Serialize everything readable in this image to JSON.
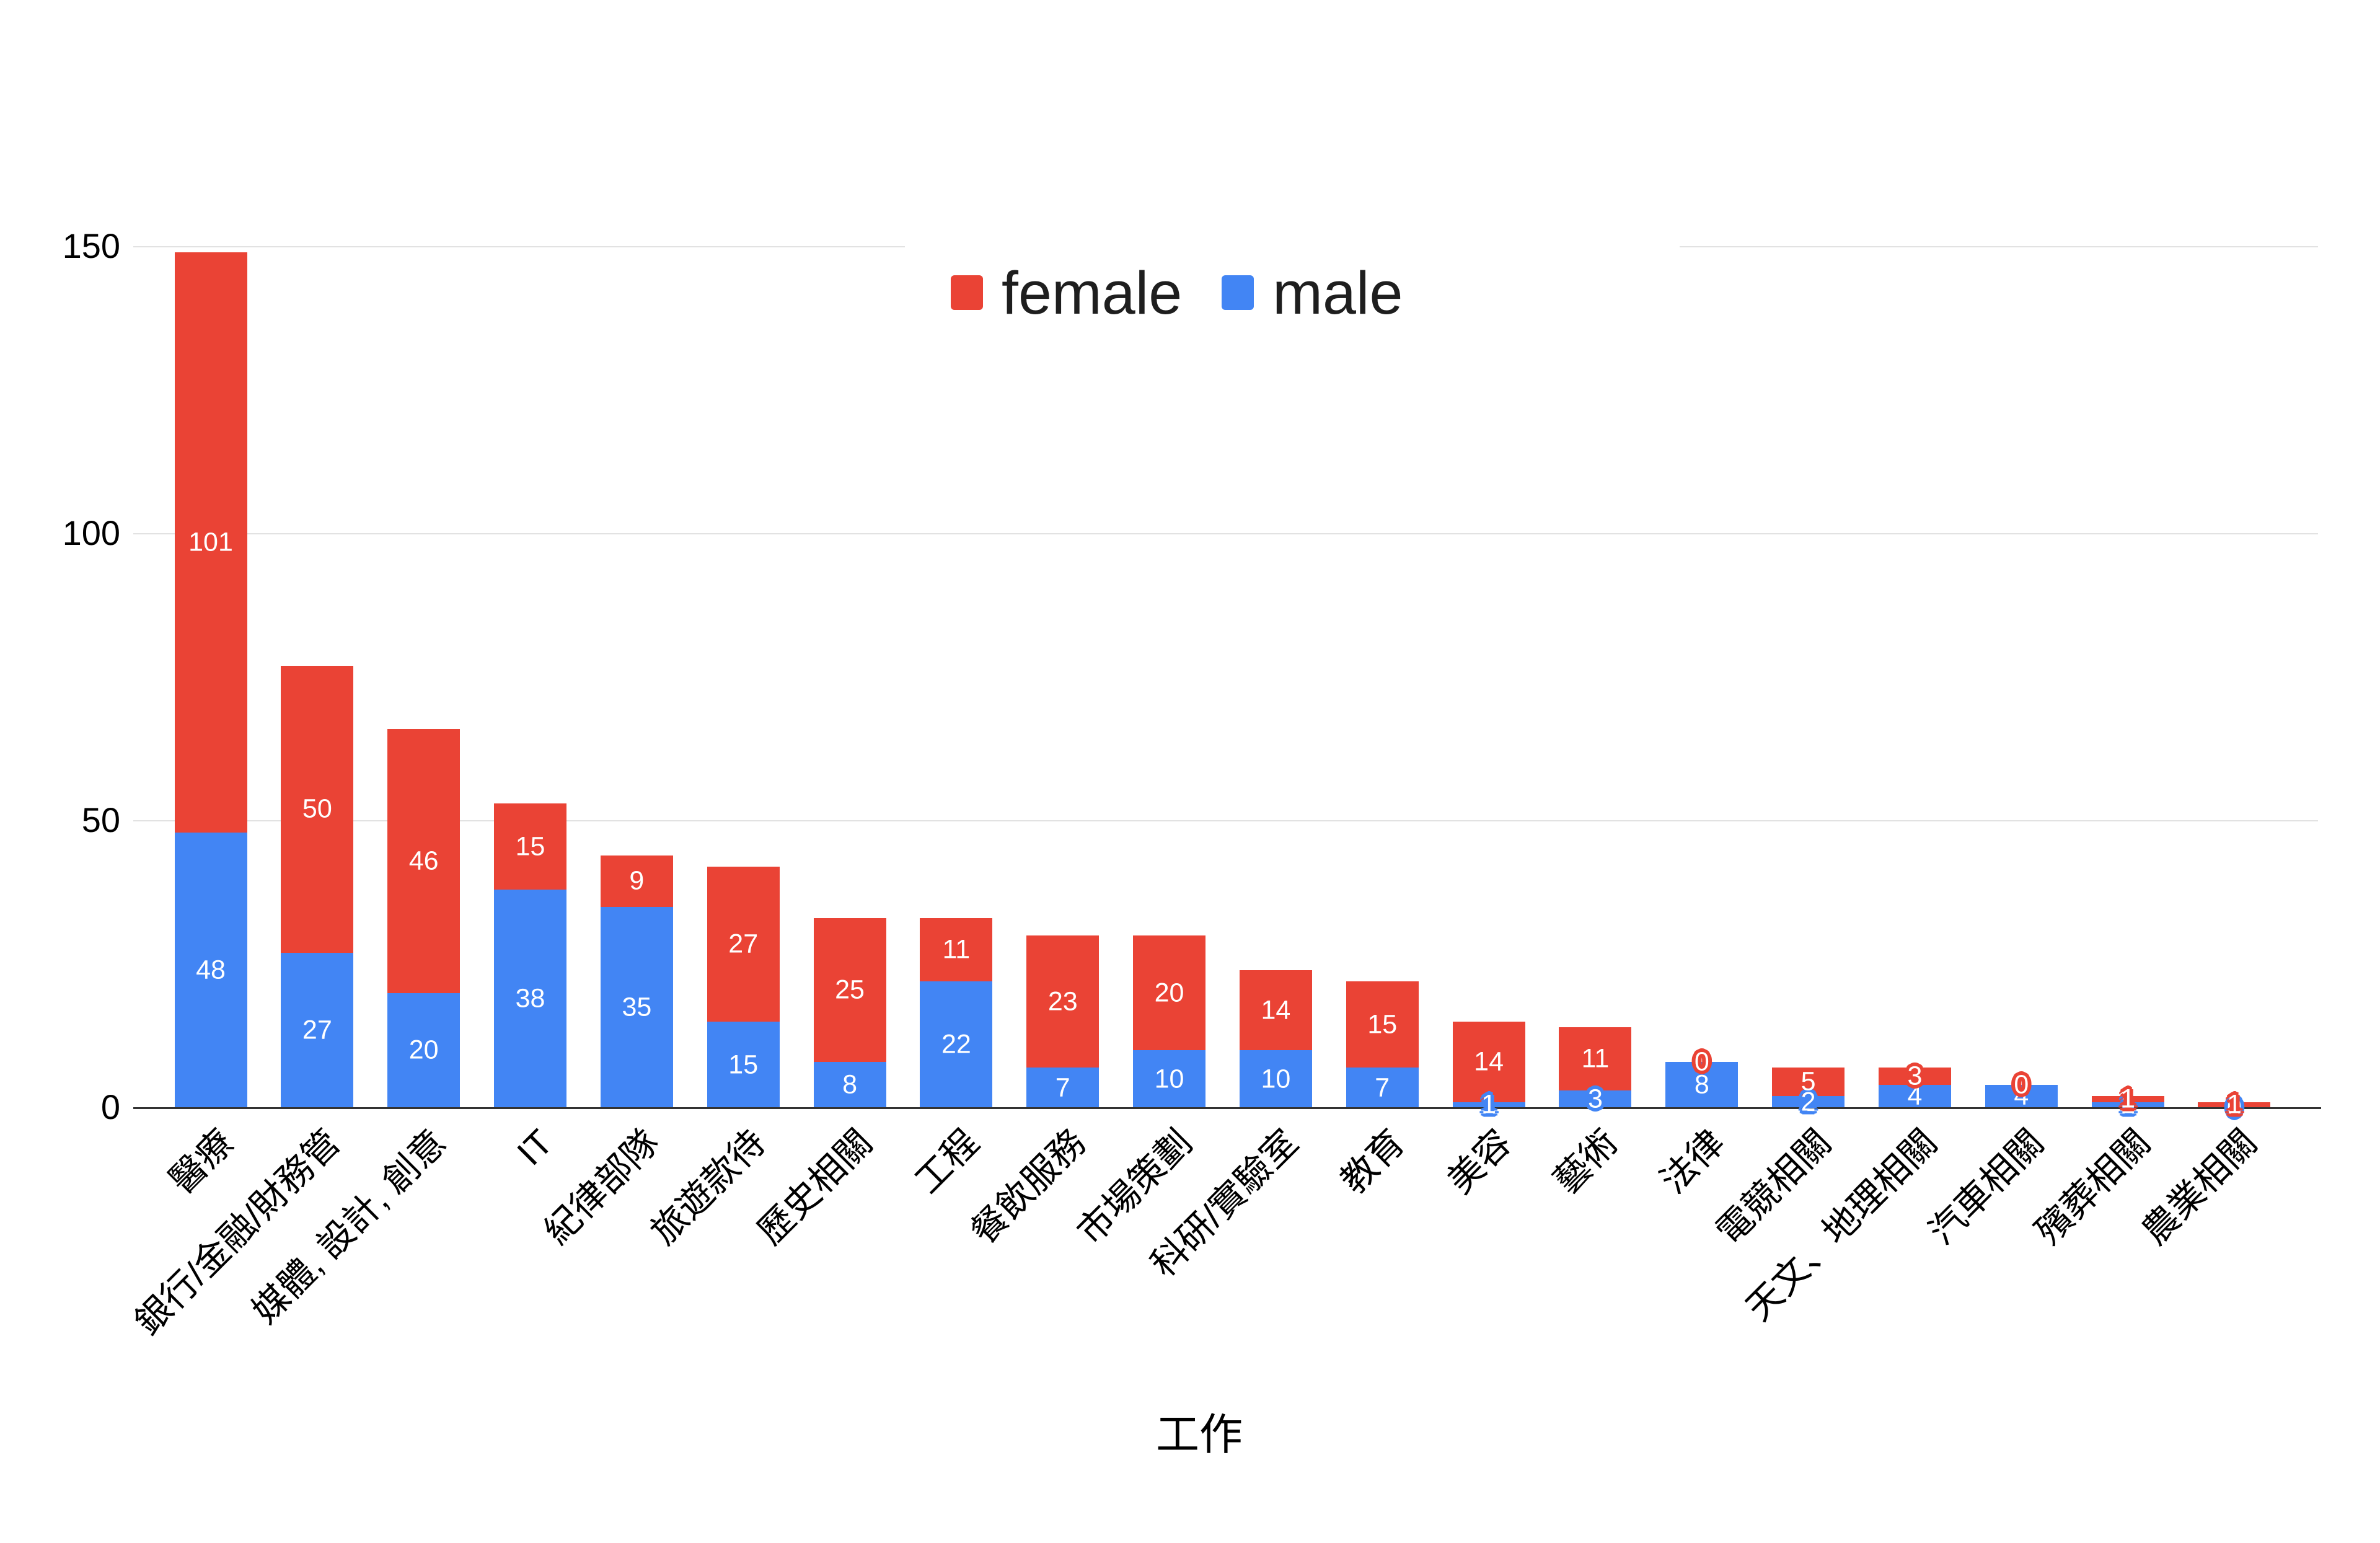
{
  "chart_data": {
    "type": "bar",
    "stacked": true,
    "title": "",
    "xlabel": "工作",
    "categories": [
      "醫療",
      "銀行/金融/財務管",
      "媒體, 設計, 創意",
      "IT",
      "紀律部隊",
      "旅遊款待",
      "歷史相關",
      "工程",
      "餐飲服務",
      "市場策劃",
      "科研/實驗室",
      "教育",
      "美容",
      "藝術",
      "法律",
      "電競相關",
      "天文、地理相關",
      "汽車相關",
      "殯葬相關",
      "農業相關"
    ],
    "series": [
      {
        "name": "female",
        "color": "#EA4335",
        "values": [
          101,
          50,
          46,
          15,
          9,
          27,
          25,
          11,
          23,
          20,
          14,
          15,
          14,
          11,
          0,
          5,
          3,
          0,
          1,
          1
        ]
      },
      {
        "name": "male",
        "color": "#4285F4",
        "values": [
          48,
          27,
          20,
          38,
          35,
          15,
          8,
          22,
          7,
          10,
          10,
          7,
          1,
          3,
          8,
          2,
          4,
          4,
          1,
          0
        ]
      }
    ],
    "totals": [
      149,
      77,
      66,
      53,
      44,
      42,
      33,
      33,
      30,
      30,
      24,
      22,
      15,
      14,
      8,
      7,
      7,
      4,
      2,
      1
    ],
    "y_ticks": [
      0,
      50,
      100,
      150
    ],
    "ylim": [
      0,
      150
    ],
    "grid": true,
    "legend_position": "top-center",
    "data_labels": "shown on every segment, white; outlined in series color when segment is small or zero"
  }
}
